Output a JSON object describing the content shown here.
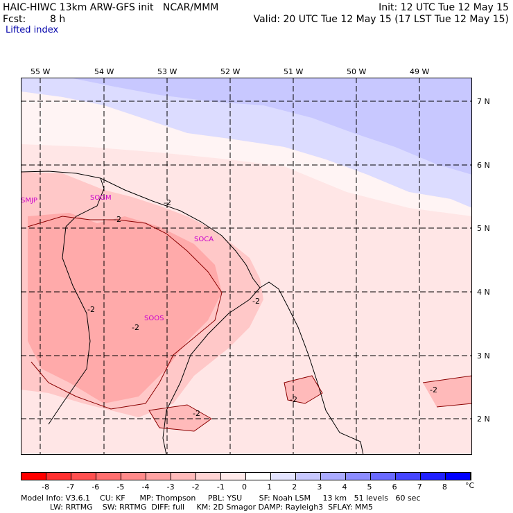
{
  "header": {
    "model_line": "HAIC-HIWC 13km ARW-GFS init   NCAR/MMM",
    "fcst_label": "Fcst:",
    "fcst_value": "8 h",
    "init": "Init: 12 UTC Tue 12 May 15",
    "valid": "Valid: 20 UTC Tue 12 May 15 (17 LST Tue 12 May 15)"
  },
  "field_title": "Lifted index",
  "map": {
    "lon_labels": [
      "55 W",
      "54 W",
      "53 W",
      "52 W",
      "51 W",
      "50 W",
      "49 W"
    ],
    "lat_labels": [
      "7 N",
      "6 N",
      "5 N",
      "4 N",
      "3 N",
      "2 N"
    ],
    "stations": [
      "SMJP",
      "SOGM",
      "SOCA",
      "SOOS"
    ],
    "contour_label": "-2"
  },
  "colorbar": {
    "ticks": [
      "-8",
      "-7",
      "-6",
      "-5",
      "-4",
      "-3",
      "-2",
      "-1",
      "0",
      "1",
      "2",
      "3",
      "4",
      "5",
      "6",
      "7",
      "8"
    ],
    "unit": "°C",
    "colors": [
      "#ff0000",
      "#ff3030",
      "#ff5050",
      "#ff6e6e",
      "#ff8a8a",
      "#ffa2a2",
      "#ffbaba",
      "#ffd4d4",
      "#ffeaea",
      "#ffffff",
      "#e4e4ff",
      "#c8c8ff",
      "#aaaaff",
      "#8c8cff",
      "#6a6aff",
      "#4646ff",
      "#2020ff",
      "#0000ff"
    ]
  },
  "footer": {
    "line1": "Model Info: V3.6.1    CU: KF      MP: Thompson     PBL: YSU       SF: Noah LSM     13 km   51 levels   60 sec",
    "line2": "            LW: RRTMG    SW: RRTMG  DIFF: full     KM: 2D Smagor DAMP: Rayleigh3  SFLAY: MM5"
  }
}
